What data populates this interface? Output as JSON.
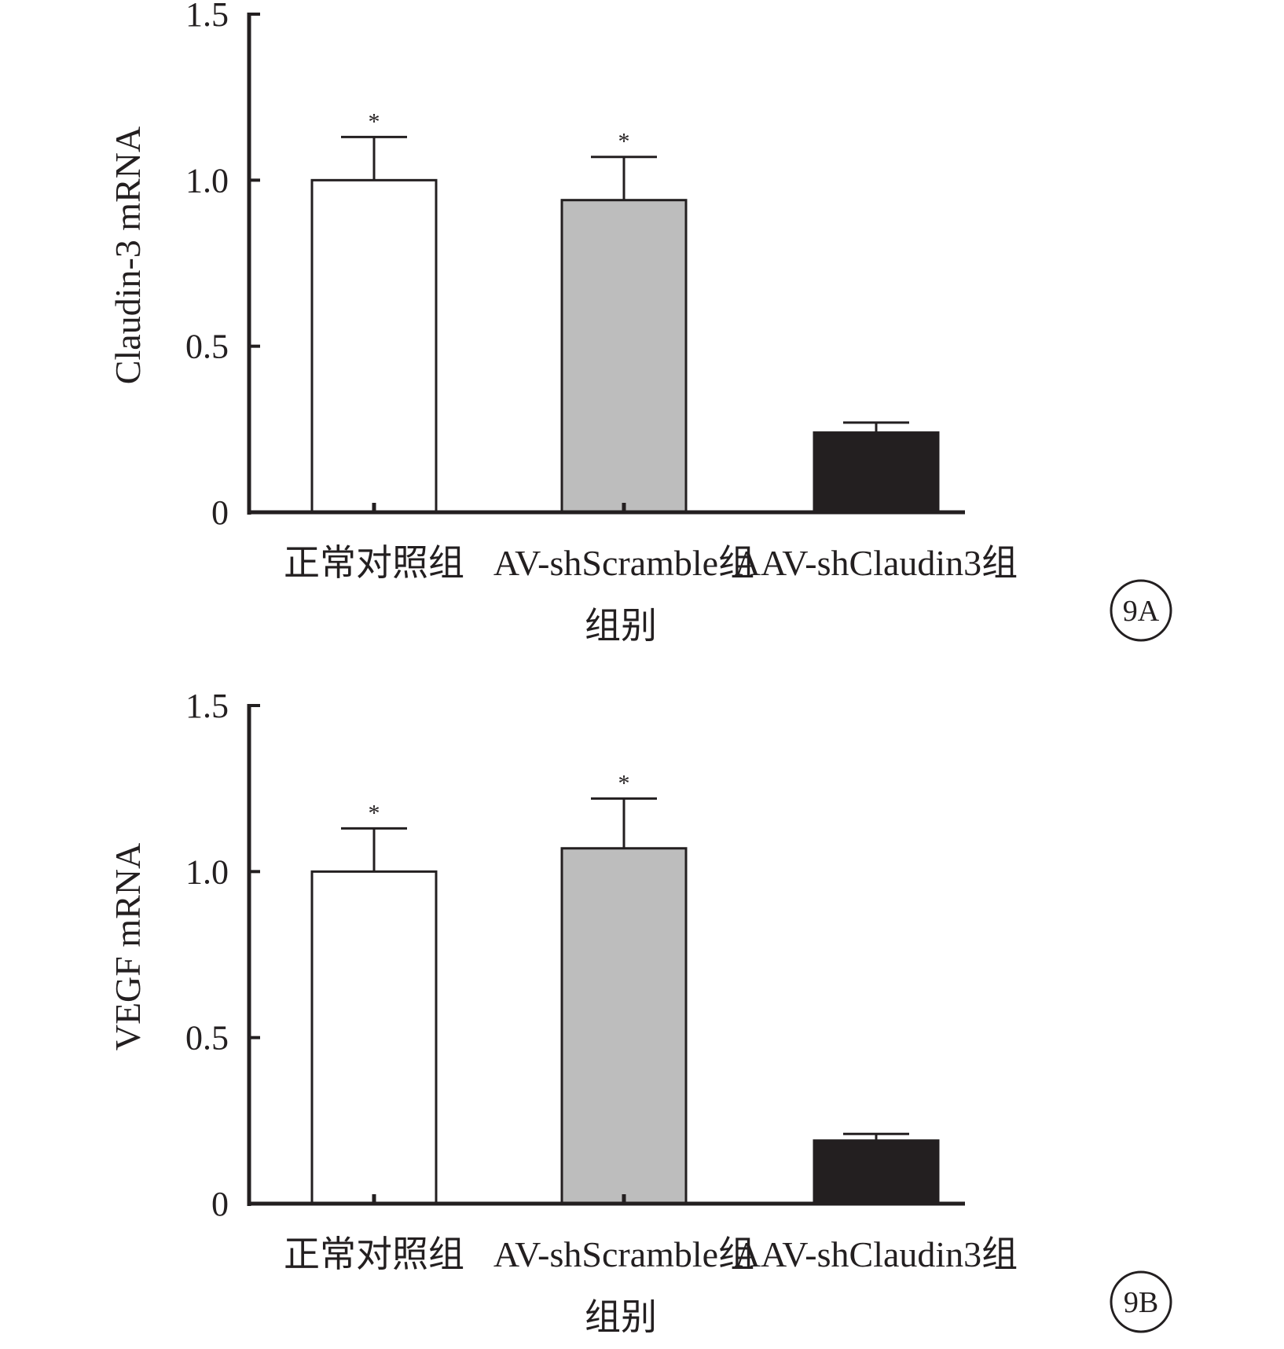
{
  "colors": {
    "ink": "#231f20",
    "bar_fills": [
      "#ffffff",
      "#bdbdbd",
      "#231f20"
    ]
  },
  "chart_data": [
    {
      "type": "bar",
      "panel_label": "9A",
      "categories": [
        "正常对照组",
        "AV-shScramble组",
        "AAV-shClaudin3组"
      ],
      "values": [
        1.0,
        0.94,
        0.24
      ],
      "error_upper": [
        0.13,
        0.13,
        0.03
      ],
      "significance": [
        "*",
        "*",
        ""
      ],
      "title": "",
      "xlabel": "组别",
      "ylabel": "Claudin-3 mRNA",
      "ylim": [
        0,
        1.5
      ],
      "yticks": [
        0,
        0.5,
        1.0,
        1.5
      ],
      "ytick_labels": [
        "0",
        "0.5",
        "1.0",
        "1.5"
      ],
      "grid": false,
      "legend": "none"
    },
    {
      "type": "bar",
      "panel_label": "9B",
      "categories": [
        "正常对照组",
        "AV-shScramble组",
        "AAV-shClaudin3组"
      ],
      "values": [
        1.0,
        1.07,
        0.19
      ],
      "error_upper": [
        0.13,
        0.15,
        0.02
      ],
      "significance": [
        "*",
        "*",
        ""
      ],
      "title": "",
      "xlabel": "组别",
      "ylabel": "VEGF mRNA",
      "ylim": [
        0,
        1.5
      ],
      "yticks": [
        0,
        0.5,
        1.0,
        1.5
      ],
      "ytick_labels": [
        "0",
        "0.5",
        "1.0",
        "1.5"
      ],
      "grid": false,
      "legend": "none"
    }
  ]
}
